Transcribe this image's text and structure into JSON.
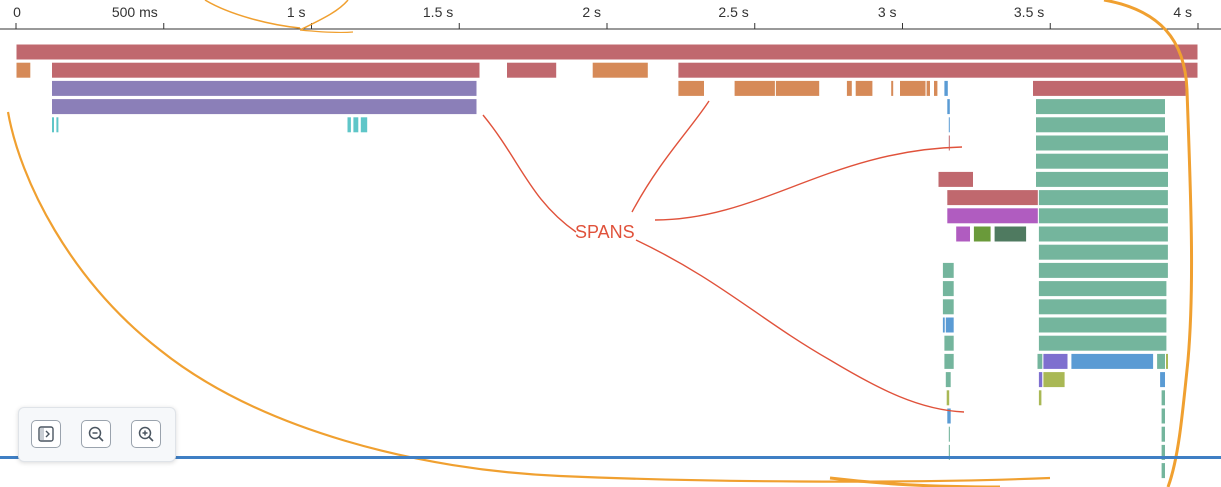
{
  "timeline": {
    "ticks": [
      "0",
      "500 ms",
      "1 s",
      "1.5 s",
      "2 s",
      "2.5 s",
      "3 s",
      "3.5 s",
      "4 s"
    ],
    "max_ms": 4000
  },
  "annotation": {
    "label": "SPANS",
    "color": "#e0523b"
  },
  "ink_color": "#f0a030",
  "spans": [
    {
      "row": 0,
      "start": 0,
      "end": 4000,
      "color": "#c0686e"
    },
    {
      "row": 1,
      "start": 0,
      "end": 50,
      "color": "#d68a58"
    },
    {
      "row": 1,
      "start": 120,
      "end": 1570,
      "color": "#c0686e"
    },
    {
      "row": 1,
      "start": 1660,
      "end": 1830,
      "color": "#c0686e"
    },
    {
      "row": 1,
      "start": 1950,
      "end": 2140,
      "color": "#d68a58"
    },
    {
      "row": 1,
      "start": 2240,
      "end": 4000,
      "color": "#c0686e"
    },
    {
      "row": 2,
      "start": 120,
      "end": 1560,
      "color": "#8b7fb8"
    },
    {
      "row": 2,
      "start": 2240,
      "end": 2330,
      "color": "#d68a58"
    },
    {
      "row": 2,
      "start": 2430,
      "end": 2570,
      "color": "#d68a58"
    },
    {
      "row": 2,
      "start": 2570,
      "end": 2720,
      "color": "#d68a58"
    },
    {
      "row": 2,
      "start": 2810,
      "end": 2830,
      "color": "#d68a58"
    },
    {
      "row": 2,
      "start": 2840,
      "end": 2900,
      "color": "#d68a58"
    },
    {
      "row": 2,
      "start": 2960,
      "end": 2970,
      "color": "#d68a58"
    },
    {
      "row": 2,
      "start": 2990,
      "end": 3080,
      "color": "#d68a58"
    },
    {
      "row": 2,
      "start": 3080,
      "end": 3095,
      "color": "#d68a58"
    },
    {
      "row": 2,
      "start": 3105,
      "end": 3120,
      "color": "#d68a58"
    },
    {
      "row": 2,
      "start": 3140,
      "end": 3155,
      "color": "#5a9bd4"
    },
    {
      "row": 2,
      "start": 3440,
      "end": 3960,
      "color": "#c0686e"
    },
    {
      "row": 3,
      "start": 120,
      "end": 1560,
      "color": "#8b7fb8"
    },
    {
      "row": 3,
      "start": 3150,
      "end": 3162,
      "color": "#5a9bd4"
    },
    {
      "row": 3,
      "start": 3450,
      "end": 3890,
      "color": "#74b59d"
    },
    {
      "row": 4,
      "start": 120,
      "end": 130,
      "color": "#5fc6c8"
    },
    {
      "row": 4,
      "start": 135,
      "end": 145,
      "color": "#5fc6c8"
    },
    {
      "row": 4,
      "start": 1120,
      "end": 1135,
      "color": "#5fc6c8"
    },
    {
      "row": 4,
      "start": 1140,
      "end": 1160,
      "color": "#5fc6c8"
    },
    {
      "row": 4,
      "start": 1165,
      "end": 1190,
      "color": "#5fc6c8"
    },
    {
      "row": 4,
      "start": 3155,
      "end": 3160,
      "color": "#5a9bd4"
    },
    {
      "row": 4,
      "start": 3450,
      "end": 3890,
      "color": "#74b59d"
    },
    {
      "row": 5,
      "start": 3155,
      "end": 3160,
      "color": "#c0686e"
    },
    {
      "row": 5,
      "start": 3450,
      "end": 3900,
      "color": "#74b59d"
    },
    {
      "row": 6,
      "start": 3450,
      "end": 3900,
      "color": "#74b59d"
    },
    {
      "row": 7,
      "start": 3120,
      "end": 3240,
      "color": "#c0686e"
    },
    {
      "row": 7,
      "start": 3450,
      "end": 3900,
      "color": "#74b59d"
    },
    {
      "row": 8,
      "start": 3150,
      "end": 3460,
      "color": "#c0686e"
    },
    {
      "row": 8,
      "start": 3460,
      "end": 3900,
      "color": "#74b59d"
    },
    {
      "row": 9,
      "start": 3150,
      "end": 3460,
      "color": "#b05cc0"
    },
    {
      "row": 9,
      "start": 3460,
      "end": 3900,
      "color": "#74b59d"
    },
    {
      "row": 10,
      "start": 3180,
      "end": 3230,
      "color": "#b05cc0"
    },
    {
      "row": 10,
      "start": 3240,
      "end": 3300,
      "color": "#6a9a3a"
    },
    {
      "row": 10,
      "start": 3310,
      "end": 3420,
      "color": "#4f7a60"
    },
    {
      "row": 10,
      "start": 3460,
      "end": 3900,
      "color": "#74b59d"
    },
    {
      "row": 11,
      "start": 3460,
      "end": 3900,
      "color": "#74b59d"
    },
    {
      "row": 12,
      "start": 3135,
      "end": 3175,
      "color": "#74b59d"
    },
    {
      "row": 12,
      "start": 3460,
      "end": 3900,
      "color": "#74b59d"
    },
    {
      "row": 13,
      "start": 3135,
      "end": 3175,
      "color": "#74b59d"
    },
    {
      "row": 13,
      "start": 3460,
      "end": 3895,
      "color": "#74b59d"
    },
    {
      "row": 14,
      "start": 3135,
      "end": 3175,
      "color": "#74b59d"
    },
    {
      "row": 14,
      "start": 3460,
      "end": 3895,
      "color": "#74b59d"
    },
    {
      "row": 15,
      "start": 3135,
      "end": 3145,
      "color": "#5a9bd4"
    },
    {
      "row": 15,
      "start": 3145,
      "end": 3175,
      "color": "#5a9bd4"
    },
    {
      "row": 15,
      "start": 3460,
      "end": 3895,
      "color": "#74b59d"
    },
    {
      "row": 16,
      "start": 3140,
      "end": 3175,
      "color": "#74b59d"
    },
    {
      "row": 16,
      "start": 3460,
      "end": 3895,
      "color": "#74b59d"
    },
    {
      "row": 17,
      "start": 3140,
      "end": 3175,
      "color": "#74b59d"
    },
    {
      "row": 17,
      "start": 3455,
      "end": 3475,
      "color": "#74b59d"
    },
    {
      "row": 17,
      "start": 3475,
      "end": 3560,
      "color": "#7e6fcf"
    },
    {
      "row": 17,
      "start": 3570,
      "end": 3850,
      "color": "#5a9bd4"
    },
    {
      "row": 17,
      "start": 3860,
      "end": 3890,
      "color": "#74b59d"
    },
    {
      "row": 17,
      "start": 3890,
      "end": 3900,
      "color": "#a9b855"
    },
    {
      "row": 18,
      "start": 3145,
      "end": 3165,
      "color": "#74b59d"
    },
    {
      "row": 18,
      "start": 3460,
      "end": 3475,
      "color": "#7e6fcf"
    },
    {
      "row": 18,
      "start": 3475,
      "end": 3550,
      "color": "#a9b855"
    },
    {
      "row": 18,
      "start": 3870,
      "end": 3890,
      "color": "#5a9bd4"
    },
    {
      "row": 19,
      "start": 3148,
      "end": 3160,
      "color": "#a9b855"
    },
    {
      "row": 19,
      "start": 3460,
      "end": 3472,
      "color": "#a9b855"
    },
    {
      "row": 19,
      "start": 3875,
      "end": 3890,
      "color": "#74b59d"
    },
    {
      "row": 20,
      "start": 3150,
      "end": 3165,
      "color": "#5a9bd4"
    },
    {
      "row": 20,
      "start": 3875,
      "end": 3890,
      "color": "#74b59d"
    },
    {
      "row": 21,
      "start": 3155,
      "end": 3162,
      "color": "#74b59d"
    },
    {
      "row": 21,
      "start": 3875,
      "end": 3890,
      "color": "#74b59d"
    },
    {
      "row": 22,
      "start": 3155,
      "end": 3162,
      "color": "#74b59d"
    },
    {
      "row": 22,
      "start": 3875,
      "end": 3890,
      "color": "#74b59d"
    },
    {
      "row": 23,
      "start": 3875,
      "end": 3890,
      "color": "#74b59d"
    }
  ],
  "controls": {
    "fit_icon": "expand-panel-icon",
    "zoom_out_icon": "zoom-out-icon",
    "zoom_in_icon": "zoom-in-icon"
  }
}
